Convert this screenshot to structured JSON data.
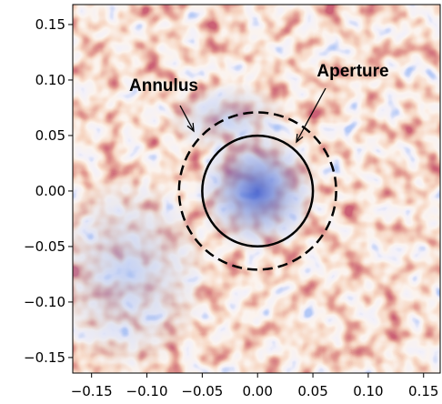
{
  "chart_data": {
    "type": "image",
    "xlim": [
      -0.167,
      0.165
    ],
    "ylim": [
      -0.164,
      0.168
    ],
    "xticks": [
      {
        "value": -0.15,
        "label": "−0.15"
      },
      {
        "value": -0.1,
        "label": "−0.10"
      },
      {
        "value": -0.05,
        "label": "−0.05"
      },
      {
        "value": 0,
        "label": "0.00"
      },
      0.05,
      {
        "value": 0.1,
        "label": "0.10"
      },
      0.15
    ],
    "yticks": [
      {
        "value": -0.15,
        "label": "−0.15"
      },
      {
        "value": -0.1,
        "label": "−0.10"
      },
      {
        "value": -0.05,
        "label": "−0.05"
      },
      {
        "value": 0,
        "label": "0.00"
      },
      0.05,
      {
        "value": 0.1,
        "label": "0.10"
      },
      0.15
    ],
    "circles": [
      {
        "label": "Aperture",
        "radius": 0.05,
        "style": "solid"
      },
      {
        "label": "Annulus",
        "radius": 0.071,
        "style": "dashed"
      }
    ]
  }
}
